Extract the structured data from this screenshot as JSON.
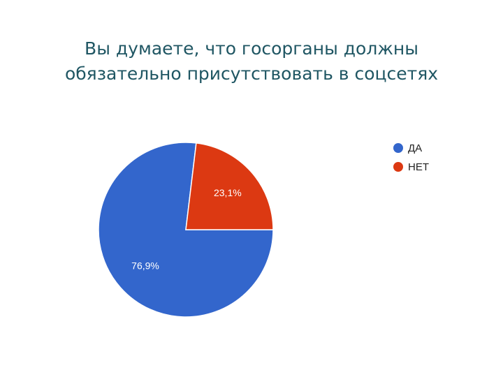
{
  "title_lines": [
    "Вы думаете, что госорганы должны",
    "обязательно присутствовать в соцсетях"
  ],
  "chart_data": {
    "type": "pie",
    "title": "Вы думаете, что госорганы должны обязательно присутствовать в соцсетях",
    "categories": [
      "ДА",
      "НЕТ"
    ],
    "values": [
      76.9,
      23.1
    ],
    "data_labels": [
      "76,9%",
      "23,1%"
    ],
    "colors": [
      "#3366cc",
      "#dc3912"
    ],
    "label_colors": [
      "#ffffff",
      "#ffffff"
    ],
    "legend_placement": "top-right"
  }
}
